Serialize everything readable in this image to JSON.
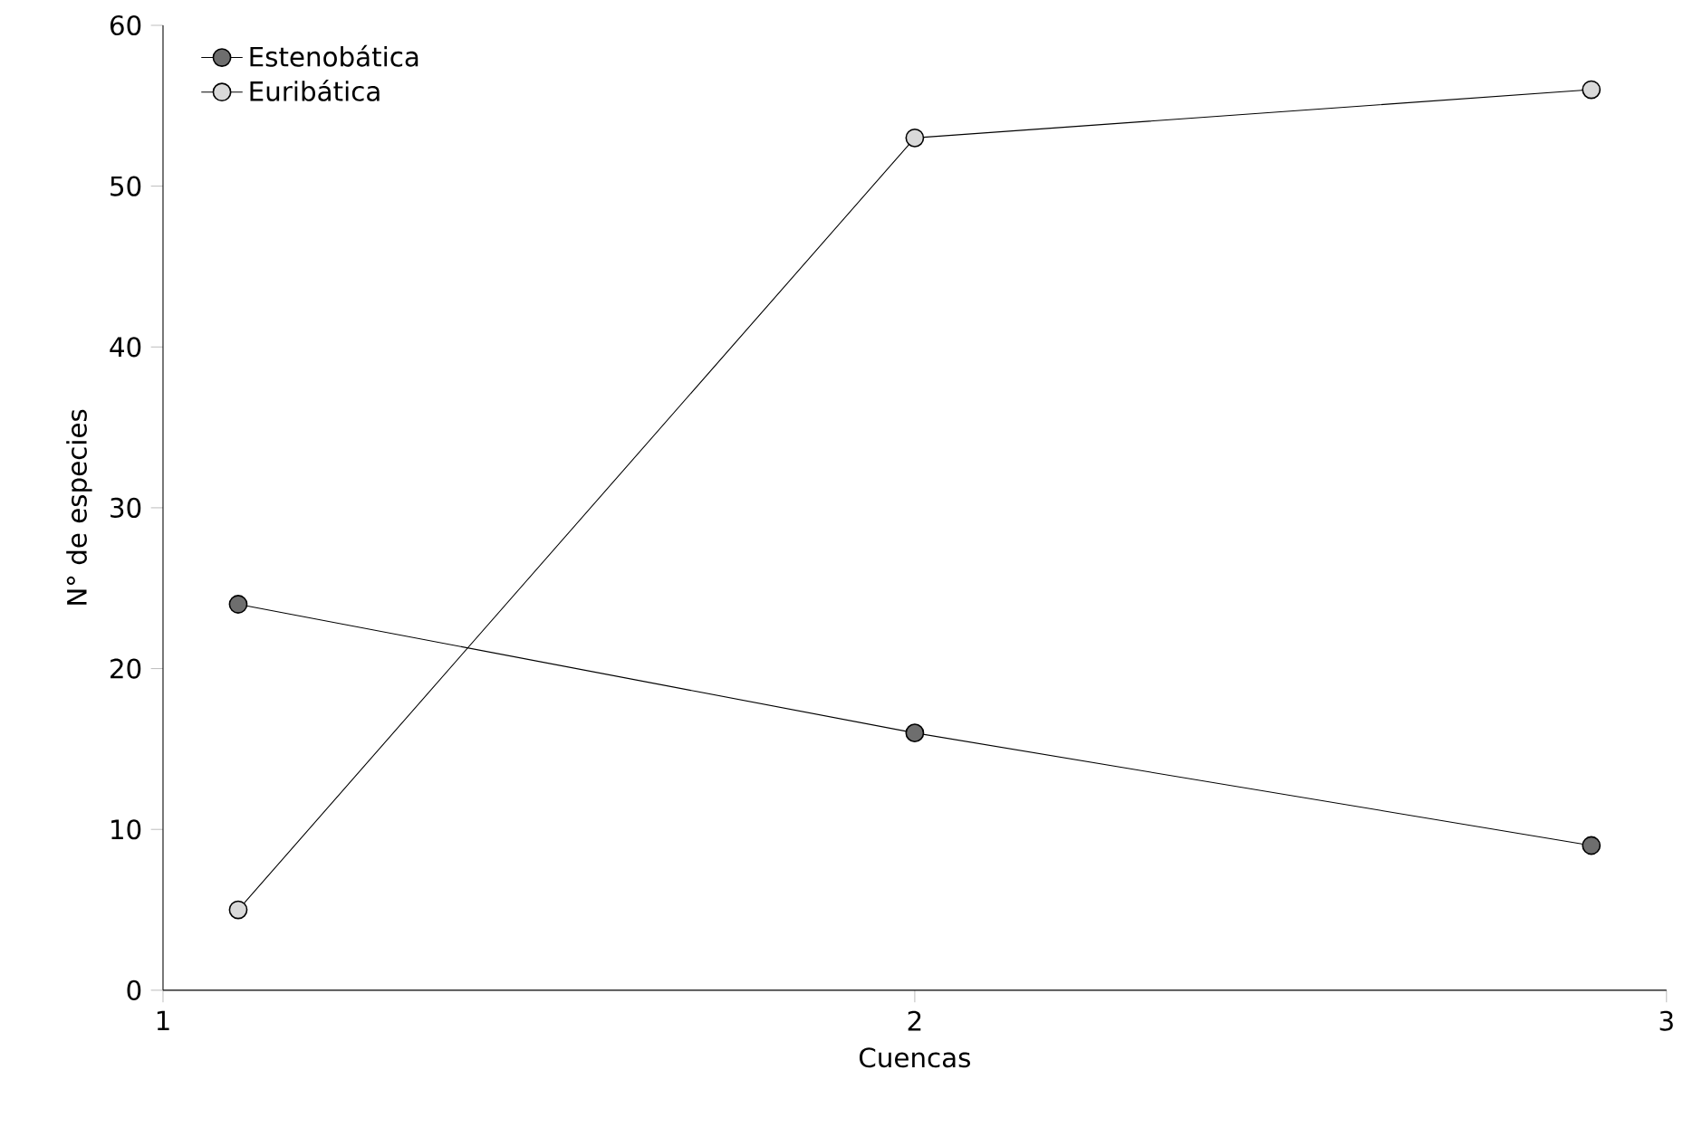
{
  "chart_data": {
    "type": "line",
    "xlabel": "Cuencas",
    "ylabel": "N° de especies",
    "series": [
      {
        "name": "Estenobática",
        "color": "#6e6e6e",
        "x": [
          1.1,
          2,
          2.9
        ],
        "values": [
          24,
          16,
          9
        ]
      },
      {
        "name": "Euribática",
        "color": "#d9d9d9",
        "x": [
          1.1,
          2,
          2.9
        ],
        "values": [
          5,
          53,
          56
        ]
      }
    ],
    "xlim": [
      1,
      3
    ],
    "xticks": [
      1,
      2,
      3
    ],
    "ylim": [
      0,
      60
    ],
    "yticks": [
      0,
      10,
      20,
      30,
      40,
      50,
      60
    ],
    "grid": false,
    "legend": "top left",
    "marker": "circle",
    "line_style": "solid"
  }
}
